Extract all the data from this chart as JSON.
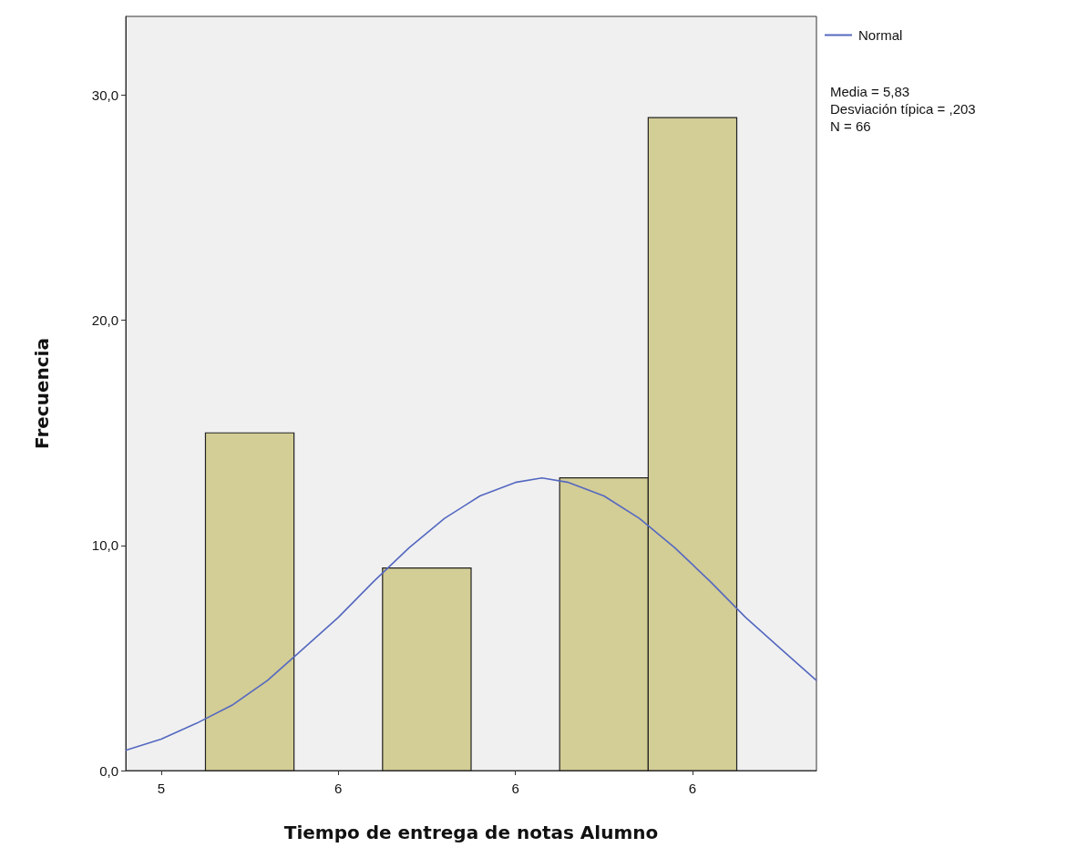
{
  "chart_data": {
    "type": "histogram",
    "xlabel": "Tiempo de entrega de notas Alumno",
    "ylabel": "Frecuencia",
    "bins": [
      5.45,
      5.55,
      5.65,
      5.75,
      5.85,
      5.95,
      6.05
    ],
    "values": [
      15,
      0,
      9,
      0,
      13,
      29
    ],
    "color": "#d3cd96",
    "xlim": [
      5.36,
      6.14
    ],
    "xticks": [
      {
        "value": 5.4,
        "label": "5"
      },
      {
        "value": 5.6,
        "label": "6"
      },
      {
        "value": 5.8,
        "label": "6"
      },
      {
        "value": 6.0,
        "label": "6"
      }
    ],
    "ylim": [
      0,
      33.5
    ],
    "yticks": [
      {
        "value": 0,
        "label": "0,0"
      },
      {
        "value": 10,
        "label": "10,0"
      },
      {
        "value": 20,
        "label": "20,0"
      },
      {
        "value": 30,
        "label": "30,0"
      }
    ],
    "series": [
      {
        "type": "line",
        "name": "Normal",
        "color": "#5468c0",
        "x": [
          5.36,
          5.4,
          5.44,
          5.48,
          5.52,
          5.56,
          5.6,
          5.64,
          5.68,
          5.72,
          5.76,
          5.8,
          5.83,
          5.86,
          5.9,
          5.94,
          5.98,
          6.02,
          6.06,
          6.1,
          6.14
        ],
        "values": [
          0.9,
          1.4,
          2.1,
          2.9,
          4.0,
          5.4,
          6.8,
          8.4,
          9.9,
          11.2,
          12.2,
          12.8,
          13.0,
          12.8,
          12.2,
          11.2,
          9.9,
          8.4,
          6.8,
          5.4,
          4.0
        ]
      }
    ],
    "annotations": [
      "Media = 5,83",
      "Desviación típica = ,203",
      "N = 66"
    ],
    "legend": "top right",
    "grid": false
  }
}
